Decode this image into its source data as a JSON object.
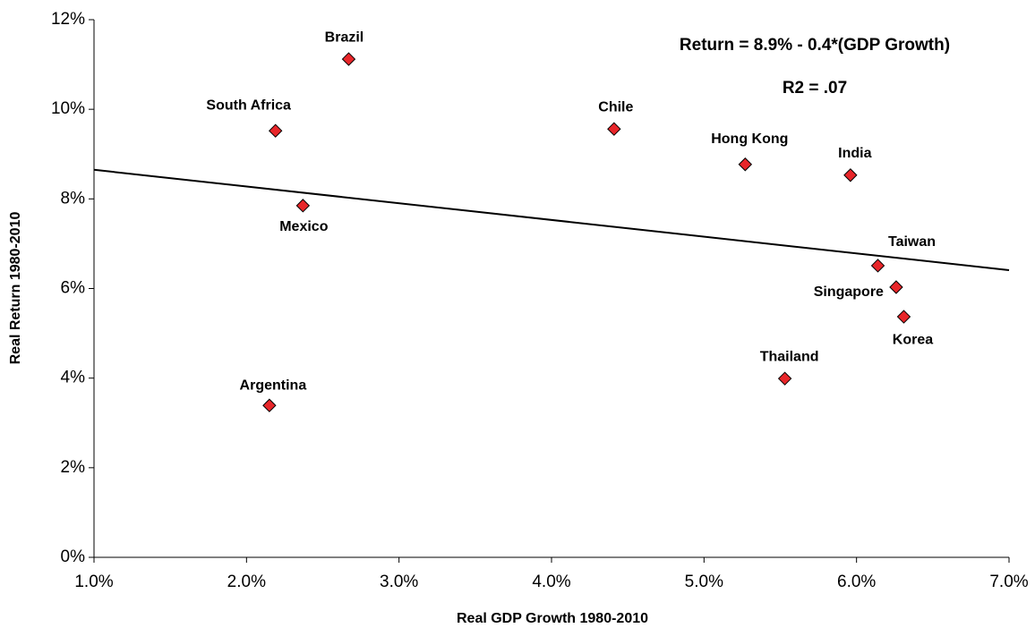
{
  "chart_data": {
    "type": "scatter",
    "x_label": "Real GDP Growth 1980-2010",
    "y_label": "Real Return 1980-2010",
    "annotations": [
      "Return = 8.9% - 0.4*(GDP Growth)",
      "R2 = .07"
    ],
    "annotation_color": "#e8262a",
    "series": [
      {
        "color": "#e8262a",
        "labels": [
          "Brazil",
          "South Africa",
          "Chile",
          "Hong Kong",
          "India",
          "Mexico",
          "Taiwan",
          "Singapore",
          "Korea",
          "Thailand",
          "Argentina"
        ],
        "x": [
          2.67,
          2.19,
          4.41,
          5.27,
          5.96,
          2.37,
          6.14,
          6.26,
          6.31,
          5.53,
          2.15
        ],
        "values": [
          11.12,
          9.52,
          9.56,
          8.77,
          8.53,
          7.85,
          6.51,
          6.03,
          5.37,
          3.99,
          3.39
        ]
      }
    ],
    "trendline": {
      "color": "#000000",
      "x": [
        1,
        7
      ],
      "values": [
        8.65,
        6.41
      ]
    },
    "xlim": [
      1,
      7
    ],
    "xticks": [
      {
        "value": 1,
        "label": "1.0%"
      },
      {
        "value": 2,
        "label": "2.0%"
      },
      {
        "value": 3,
        "label": "3.0%"
      },
      {
        "value": 4,
        "label": "4.0%"
      },
      {
        "value": 5,
        "label": "5.0%"
      },
      {
        "value": 6,
        "label": "6.0%"
      },
      {
        "value": 7,
        "label": "7.0%"
      }
    ],
    "ylim": [
      0,
      12
    ],
    "yticks": [
      {
        "value": 0,
        "label": "0%"
      },
      {
        "value": 2,
        "label": "2%"
      },
      {
        "value": 4,
        "label": "4%"
      },
      {
        "value": 6,
        "label": "6%"
      },
      {
        "value": 8,
        "label": "8%"
      },
      {
        "value": 10,
        "label": "10%"
      },
      {
        "value": 12,
        "label": "12%"
      }
    ],
    "grid": false
  }
}
